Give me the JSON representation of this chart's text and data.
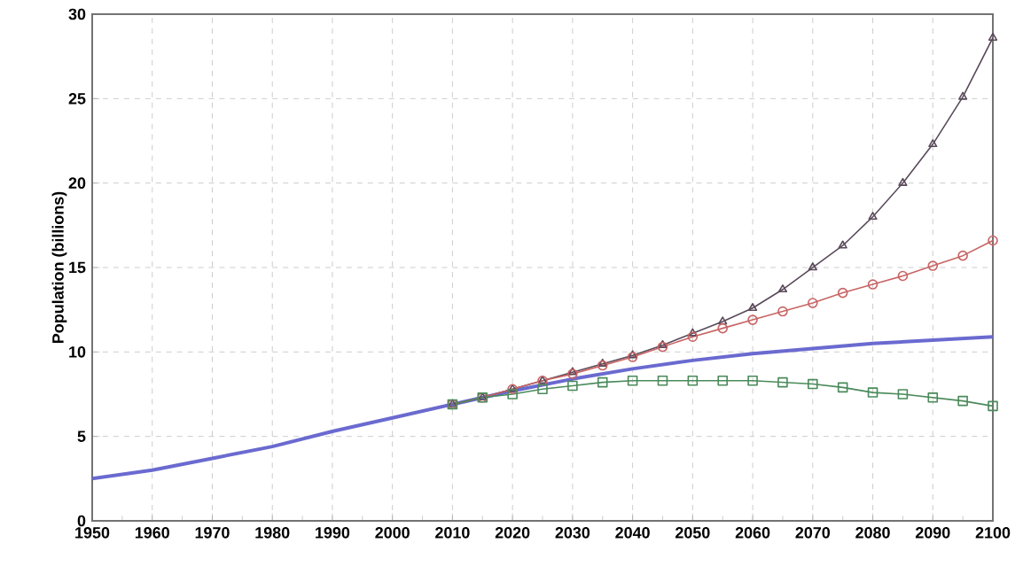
{
  "chart_data": {
    "type": "line",
    "ylabel": "Population (billions)",
    "xlim": [
      1950,
      2100
    ],
    "ylim": [
      0,
      30
    ],
    "xticks": [
      1950,
      1960,
      1970,
      1980,
      1990,
      2000,
      2010,
      2020,
      2030,
      2040,
      2050,
      2060,
      2070,
      2080,
      2090,
      2100
    ],
    "yticks": [
      0,
      5,
      10,
      15,
      20,
      25,
      30
    ],
    "grid": true,
    "series": [
      {
        "color": "#6a6ad0",
        "marker": "none",
        "x": [
          1950,
          1960,
          1970,
          1980,
          1990,
          2000,
          2010,
          2020,
          2030,
          2040,
          2050,
          2060,
          2070,
          2080,
          2090,
          2100
        ],
        "values": [
          2.5,
          3.0,
          3.7,
          4.4,
          5.3,
          6.1,
          6.9,
          7.7,
          8.4,
          9.0,
          9.5,
          9.9,
          10.2,
          10.5,
          10.7,
          10.9
        ]
      },
      {
        "color": "#5a4a5a",
        "marker": "triangle",
        "x": [
          2010,
          2015,
          2020,
          2025,
          2030,
          2035,
          2040,
          2045,
          2050,
          2055,
          2060,
          2065,
          2070,
          2075,
          2080,
          2085,
          2090,
          2095,
          2100
        ],
        "values": [
          6.9,
          7.3,
          7.8,
          8.3,
          8.8,
          9.3,
          9.8,
          10.4,
          11.1,
          11.8,
          12.6,
          13.7,
          15.0,
          16.3,
          18.0,
          20.0,
          22.3,
          25.1,
          28.6
        ]
      },
      {
        "color": "#c86464",
        "marker": "circle",
        "x": [
          2010,
          2015,
          2020,
          2025,
          2030,
          2035,
          2040,
          2045,
          2050,
          2055,
          2060,
          2065,
          2070,
          2075,
          2080,
          2085,
          2090,
          2095,
          2100
        ],
        "values": [
          6.9,
          7.3,
          7.8,
          8.3,
          8.7,
          9.2,
          9.7,
          10.3,
          10.9,
          11.4,
          11.9,
          12.4,
          12.9,
          13.5,
          14.0,
          14.5,
          15.1,
          15.7,
          16.6
        ]
      },
      {
        "color": "#4a8a5a",
        "marker": "square",
        "x": [
          2010,
          2015,
          2020,
          2025,
          2030,
          2035,
          2040,
          2045,
          2050,
          2055,
          2060,
          2065,
          2070,
          2075,
          2080,
          2085,
          2090,
          2095,
          2100
        ],
        "values": [
          6.9,
          7.3,
          7.5,
          7.8,
          8.0,
          8.2,
          8.3,
          8.3,
          8.3,
          8.3,
          8.3,
          8.2,
          8.1,
          7.9,
          7.6,
          7.5,
          7.3,
          7.1,
          6.8
        ]
      }
    ]
  }
}
